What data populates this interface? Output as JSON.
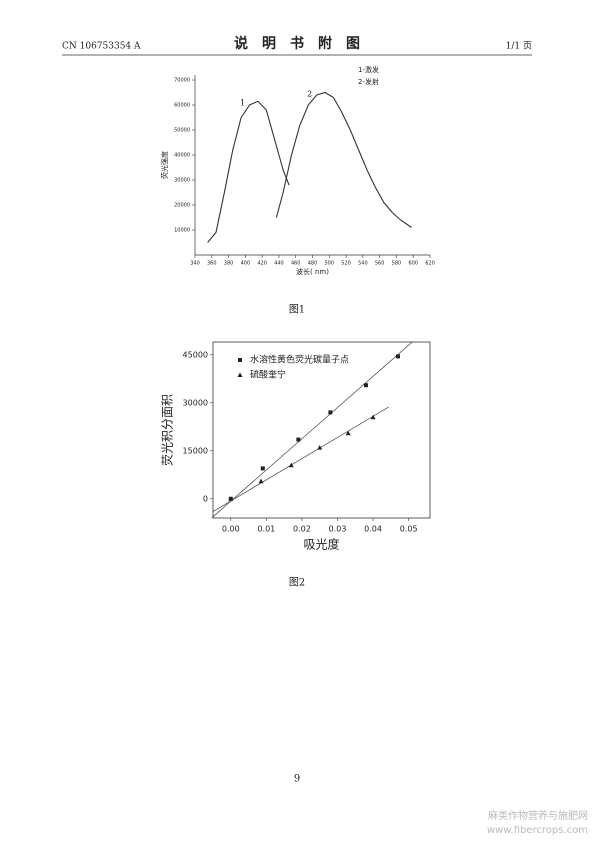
{
  "header": {
    "left": "CN 106753354 A",
    "title": "说　明　书　附　图",
    "right": "1/1 页"
  },
  "chart_data": [
    {
      "type": "line",
      "x_label": "波长( nm)",
      "y_label": "荧光强度",
      "xlim": [
        340,
        620
      ],
      "xticks": [
        340,
        360,
        380,
        400,
        420,
        440,
        460,
        480,
        500,
        520,
        540,
        560,
        580,
        600,
        620
      ],
      "ylim": [
        0,
        72000
      ],
      "yticks": [
        10000,
        20000,
        30000,
        40000,
        50000,
        60000,
        70000
      ],
      "series": [
        {
          "name": "1-激发",
          "label": "1",
          "color": "#333333",
          "x": [
            355,
            365,
            375,
            385,
            395,
            405,
            415,
            425,
            435,
            445,
            452
          ],
          "values": [
            5000,
            9000,
            25000,
            42000,
            55000,
            60000,
            61500,
            58000,
            46000,
            34000,
            28000
          ]
        },
        {
          "name": "2-发射",
          "label": "2",
          "color": "#333333",
          "x": [
            437,
            445,
            455,
            465,
            475,
            485,
            495,
            505,
            515,
            525,
            535,
            545,
            555,
            565,
            575,
            585,
            598
          ],
          "values": [
            15000,
            25000,
            40000,
            52000,
            60000,
            64000,
            65000,
            63000,
            57000,
            50000,
            42000,
            34000,
            27000,
            21000,
            17000,
            14000,
            11000
          ]
        }
      ]
    },
    {
      "type": "scatter",
      "x_label": "吸光度",
      "y_label": "荧光积分面积",
      "xlim": [
        -0.005,
        0.056
      ],
      "xticks": [
        {
          "value": 0,
          "label": "0.00"
        },
        0.01,
        0.02,
        0.03,
        0.04,
        0.05
      ],
      "ylim": [
        -6000,
        49000
      ],
      "yticks": [
        0,
        15000,
        30000,
        45000
      ],
      "series": [
        {
          "name": "水溶性黄色荧光碳量子点",
          "marker": "square",
          "color": "#222222",
          "x": [
            0,
            0.009,
            0.019,
            0.028,
            0.038,
            0.047
          ],
          "values": [
            0,
            9500,
            18500,
            27000,
            35500,
            44500
          ],
          "fit_x": [
            -0.0053,
            0.051
          ],
          "fit_values": [
            -5900,
            49000
          ]
        },
        {
          "name": "硫酸奎宁",
          "marker": "triangle",
          "color": "#222222",
          "x": [
            0,
            0.0085,
            0.017,
            0.025,
            0.033,
            0.04
          ],
          "values": [
            0,
            5500,
            10500,
            16000,
            20500,
            25500
          ],
          "fit_x": [
            -0.005,
            0.0444
          ],
          "fit_values": [
            -4000,
            28700
          ]
        }
      ]
    }
  ],
  "captions": [
    "图1",
    "图2"
  ],
  "page_number": "9",
  "watermark": {
    "name": "麻类作物营养与施肥网",
    "url": "www.fibercrops.com"
  }
}
